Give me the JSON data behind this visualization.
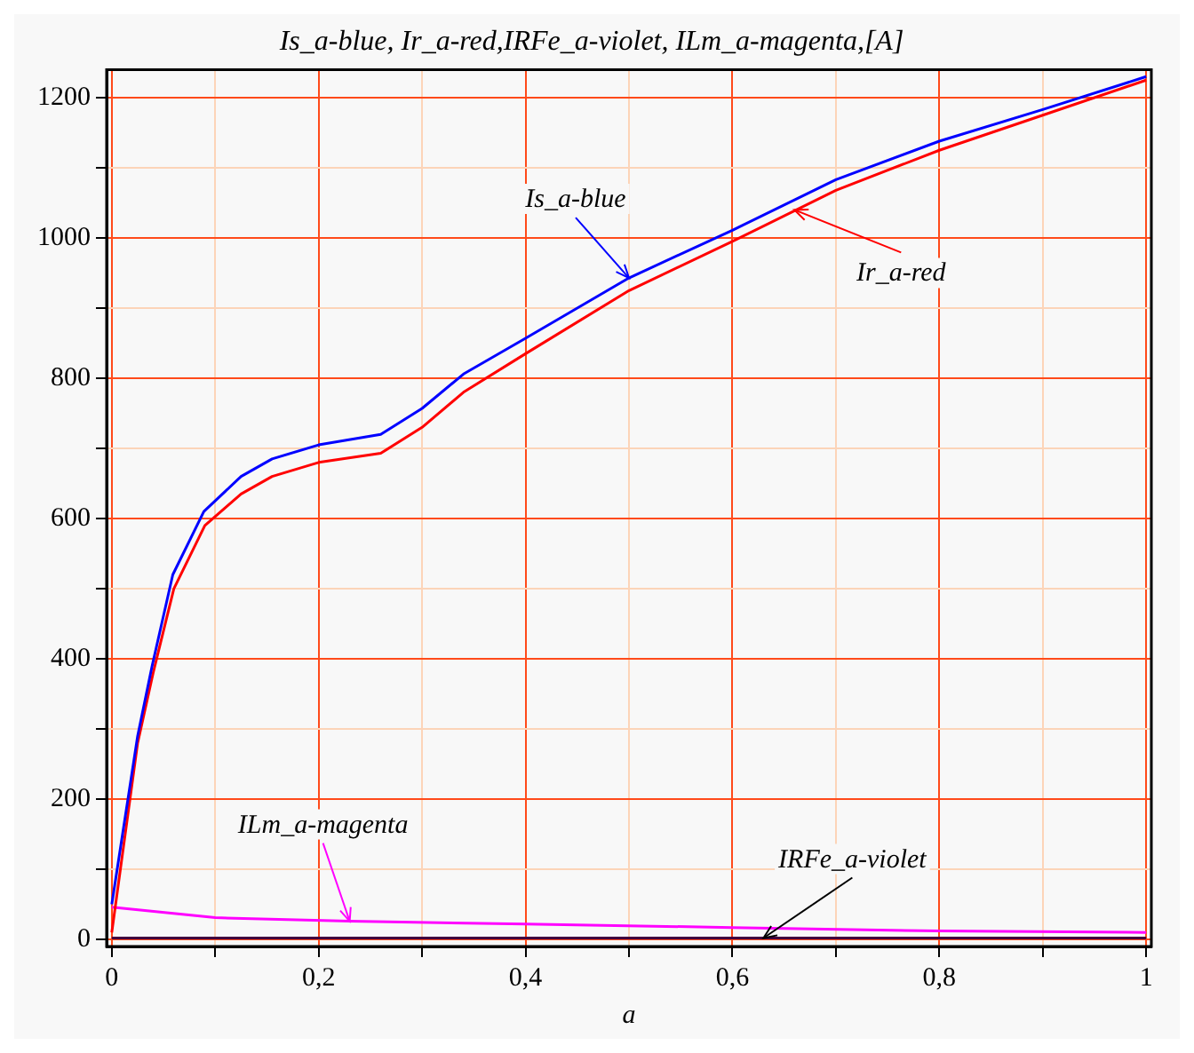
{
  "chart_data": {
    "type": "line",
    "title": "Is_a-blue, Ir_a-red,IRFe_a-violet, ILm_a-magenta,[A]",
    "xlabel": "a",
    "series": [
      {
        "color": "#0000ff",
        "x": [
          0,
          0.025,
          0.039,
          0.059,
          0.089,
          0.125,
          0.155,
          0.2,
          0.26,
          0.3,
          0.34,
          0.4,
          0.5,
          0.6,
          0.7,
          0.8,
          0.9,
          1
        ],
        "values": [
          50,
          290,
          390,
          520,
          610,
          660,
          685,
          705,
          720,
          757,
          806,
          857,
          943,
          1011,
          1083,
          1138,
          1183,
          1230
        ]
      },
      {
        "color": "#ff0000",
        "x": [
          0,
          0.025,
          0.04,
          0.06,
          0.09,
          0.125,
          0.155,
          0.2,
          0.26,
          0.3,
          0.34,
          0.4,
          0.5,
          0.6,
          0.7,
          0.8,
          0.9,
          1
        ],
        "values": [
          10,
          280,
          380,
          500,
          590,
          635,
          660,
          680,
          693,
          730,
          780,
          835,
          925,
          995,
          1068,
          1125,
          1175,
          1225
        ]
      },
      {
        "color": "#400040",
        "x": [
          0,
          1
        ],
        "values": [
          2,
          2
        ]
      },
      {
        "color": "#ff00ff",
        "x": [
          0,
          0.1,
          0.23,
          0.4,
          0.6,
          0.8,
          1
        ],
        "values": [
          46,
          31,
          26,
          22,
          17,
          12,
          10
        ]
      }
    ],
    "xlim": [
      -0.005,
      1.005
    ],
    "ylim": [
      -10,
      1240
    ],
    "xticks": [
      0,
      {
        "value": 0.1,
        "label": null
      },
      {
        "value": 0.2,
        "label": "0,2"
      },
      {
        "value": 0.3,
        "label": null
      },
      {
        "value": 0.4,
        "label": "0,4"
      },
      {
        "value": 0.5,
        "label": null
      },
      {
        "value": 0.6,
        "label": "0,6"
      },
      {
        "value": 0.7,
        "label": null
      },
      {
        "value": 0.8,
        "label": "0,8"
      },
      {
        "value": 0.9,
        "label": null
      },
      1
    ],
    "yticks": [
      0,
      {
        "value": 100,
        "label": null
      },
      200,
      {
        "value": 300,
        "label": null
      },
      400,
      {
        "value": 500,
        "label": null
      },
      600,
      {
        "value": 700,
        "label": null
      },
      800,
      {
        "value": 900,
        "label": null
      },
      1000,
      {
        "value": 1100,
        "label": null
      },
      1200
    ],
    "grid": true,
    "legend": false,
    "marker": "none",
    "line_style": "solid",
    "annotations": [
      {
        "text": "Is_a-blue",
        "x": 0.5,
        "y": 943
      },
      {
        "text": "Ir_a-red",
        "x": 0.66,
        "y": 1040
      },
      {
        "text": "ILm_a-magenta",
        "x": 0.23,
        "y": 26
      },
      {
        "text": "IRFe_a-violet",
        "x": 0.63,
        "y": 2
      }
    ]
  }
}
